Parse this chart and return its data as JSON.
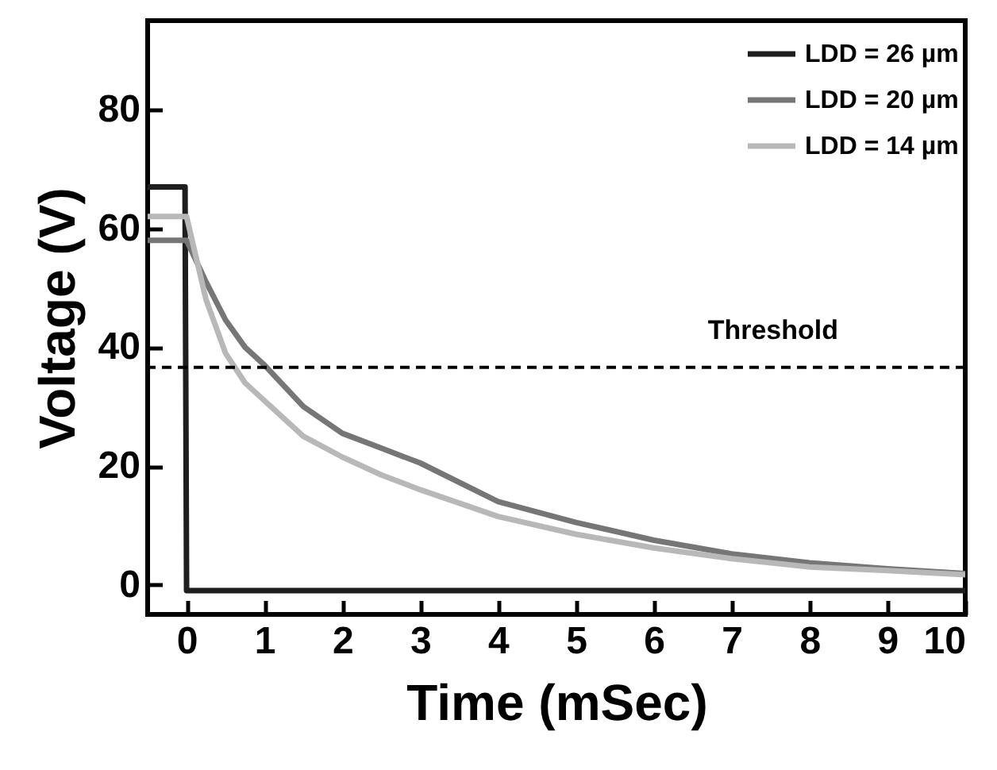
{
  "chart_data": {
    "type": "line",
    "xlabel": "Time (mSec)",
    "ylabel": "Voltage (V)",
    "xlim": [
      -0.5,
      10
    ],
    "ylim": [
      -5,
      95
    ],
    "xticks": [
      0,
      1,
      2,
      3,
      4,
      5,
      6,
      7,
      8,
      9,
      10
    ],
    "yticks": [
      0,
      20,
      40,
      60,
      80
    ],
    "legend": "top right",
    "series": [
      {
        "name": "LDD = 26 µm",
        "color": "#1e1e1e",
        "x": [
          -0.5,
          -0.25,
          -0.05,
          -0.02,
          0,
          0.5,
          1,
          2,
          3,
          4,
          5,
          6,
          7,
          8,
          9,
          10
        ],
        "values": [
          67,
          67,
          67,
          67,
          -1,
          -1,
          -1,
          -1,
          -1,
          -1,
          -1,
          -1,
          -1,
          -1,
          -1,
          -1
        ]
      },
      {
        "name": "LDD = 20 µm",
        "color": "#767676",
        "x": [
          -0.5,
          -0.25,
          0,
          0.25,
          0.5,
          0.75,
          1,
          1.5,
          2,
          2.5,
          3,
          4,
          5,
          6,
          7,
          8,
          9,
          10
        ],
        "values": [
          58,
          58,
          58,
          51,
          44.6,
          40,
          37,
          30,
          25.5,
          23,
          20.5,
          14,
          10.5,
          7.5,
          5.2,
          3.7,
          2.7,
          1.9
        ]
      },
      {
        "name": "LDD = 14 µm",
        "color": "#b8b8b8",
        "x": [
          -0.5,
          -0.25,
          0,
          0.25,
          0.5,
          0.75,
          1,
          1.5,
          2,
          2.5,
          3,
          4,
          5,
          6,
          7,
          8,
          9,
          10
        ],
        "values": [
          62,
          62,
          62,
          48,
          39,
          34,
          31,
          25,
          21.5,
          18.5,
          16,
          11.5,
          8.5,
          6.2,
          4.4,
          3,
          2.4,
          1.7
        ]
      }
    ],
    "ref_lines": [
      {
        "axis": "y",
        "value": 36.6,
        "label": "Threshold",
        "line_style": "dashed",
        "color": "#000000"
      }
    ]
  }
}
